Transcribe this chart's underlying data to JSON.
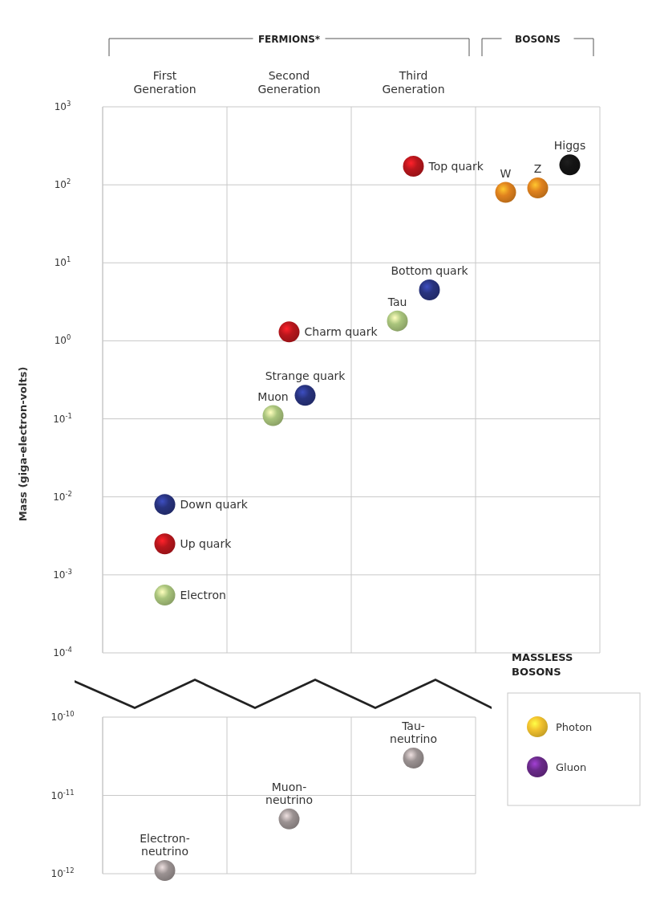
{
  "chart_data": [
    {
      "type": "scatter",
      "ylabel": "Mass (giga-electron-volts)",
      "categories": [
        "First Generation",
        "Second Generation",
        "Third Generation",
        null
      ],
      "log": "y",
      "ylim": [
        0.0001,
        1000
      ],
      "yticks": [
        {
          "value": 1000,
          "label": "10$^{3}$"
        },
        {
          "value": 100,
          "label": "10$^{2}$"
        },
        {
          "value": 10,
          "label": "10$^{1}$"
        },
        {
          "value": 1,
          "label": "10$^{0}$"
        },
        {
          "value": 0.1,
          "label": "10$^{-1}$"
        },
        {
          "value": 0.01,
          "label": "10$^{-2}$"
        },
        {
          "value": 0.001,
          "label": "10$^{-3}$"
        },
        {
          "value": 0.0001,
          "label": "10$^{-4}$"
        }
      ],
      "grid": true,
      "marker": "circle",
      "annotations": [
        "FERMIONS*",
        "BOSONS"
      ],
      "series": [
        {
          "name": "Up quark",
          "color": "#b8161c",
          "values": [
            0.0025,
            null,
            null,
            null
          ]
        },
        {
          "name": "Down quark",
          "color": "#28337e",
          "values": [
            0.008,
            null,
            null,
            null
          ]
        },
        {
          "name": "Electron",
          "color": "#a9c47c",
          "values": [
            0.00055,
            null,
            null,
            null
          ]
        },
        {
          "name": "Charm quark",
          "color": "#b8161c",
          "values": [
            null,
            1.3,
            null,
            null
          ]
        },
        {
          "name": "Strange quark",
          "color": "#28337e",
          "values": [
            null,
            0.2,
            null,
            null
          ]
        },
        {
          "name": "Muon",
          "color": "#a9c47c",
          "values": [
            null,
            0.11,
            null,
            null
          ]
        },
        {
          "name": "Top quark",
          "color": "#b8161c",
          "values": [
            null,
            null,
            173,
            null
          ]
        },
        {
          "name": "Bottom quark",
          "color": "#28337e",
          "values": [
            null,
            null,
            4.5,
            null
          ]
        },
        {
          "name": "Tau",
          "color": "#a9c47c",
          "values": [
            null,
            null,
            1.8,
            null
          ]
        },
        {
          "name": "W",
          "color": "#e0821e",
          "values": [
            null,
            null,
            null,
            80
          ]
        },
        {
          "name": "Z",
          "color": "#e0821e",
          "values": [
            null,
            null,
            null,
            91
          ]
        },
        {
          "name": "Higgs",
          "color": "#141414",
          "values": [
            null,
            null,
            null,
            180
          ]
        }
      ]
    },
    {
      "type": "scatter",
      "categories": [
        null,
        null,
        null
      ],
      "tick_labels": "y",
      "log": "y",
      "ylim": [
        1e-12,
        1e-10
      ],
      "yticks": [
        {
          "value": 1e-10,
          "label": "10$^{-10}$"
        },
        {
          "value": 1e-11,
          "label": "10$^{-11}$"
        },
        {
          "value": 1e-12,
          "label": "10$^{-12}$"
        }
      ],
      "grid": true,
      "marker": "circle",
      "legend": "right",
      "legend_title": "MASSLESS BOSONS",
      "series": [
        {
          "name": "Electron-neutrino",
          "color": "#9b9292",
          "values": [
            1.1e-12,
            null,
            null
          ]
        },
        {
          "name": "Muon-neutrino",
          "color": "#9b9292",
          "values": [
            null,
            5e-12,
            null
          ]
        },
        {
          "name": "Tau-neutrino",
          "color": "#9b9292",
          "values": [
            null,
            null,
            3e-11
          ]
        },
        {
          "name": "Photon",
          "color": "#f2c22e",
          "values": [
            null,
            null,
            null
          ]
        },
        {
          "name": "Gluon",
          "color": "#6a2a8a",
          "values": [
            null,
            null,
            null
          ]
        }
      ]
    }
  ]
}
